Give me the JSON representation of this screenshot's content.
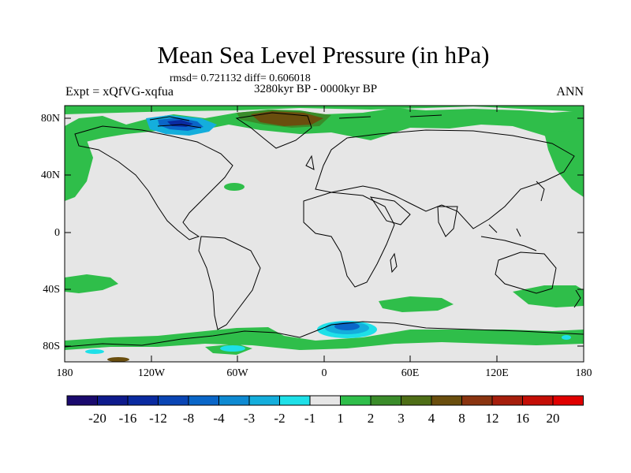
{
  "title": "Mean Sea Level Pressure (in hPa)",
  "stats": "rmsd= 0.721132 diff= 0.606018",
  "period": "3280kyr BP - 0000kyr BP",
  "experiment": "Expt = xQfVG-xqfua",
  "season": "ANN",
  "lat_labels": [
    "80N",
    "40N",
    "0",
    "40S",
    "80S"
  ],
  "lon_labels": [
    "180",
    "120W",
    "60W",
    "0",
    "60E",
    "120E",
    "180"
  ],
  "colorbar": {
    "labels": [
      "-20",
      "-16",
      "-12",
      "-8",
      "-4",
      "-3",
      "-2",
      "-1",
      "1",
      "2",
      "3",
      "4",
      "8",
      "12",
      "16",
      "20"
    ],
    "colors": [
      "#1a0a6e",
      "#0e1a8c",
      "#0a2aa0",
      "#0a45b4",
      "#0a66c8",
      "#0e8ad2",
      "#14aedc",
      "#1ee0e8",
      "#e6e6e6",
      "#2fbe4a",
      "#3a8c2a",
      "#4e6e16",
      "#6a4e0e",
      "#8a3410",
      "#a61e0c",
      "#c40e06",
      "#e00000"
    ]
  }
}
